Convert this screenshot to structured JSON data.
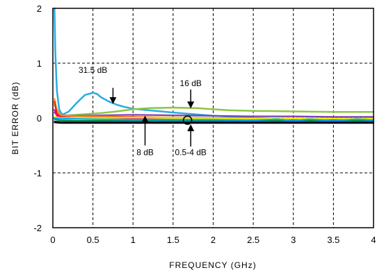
{
  "chart_data": {
    "type": "line",
    "title": "",
    "xlabel": "FREQUENCY (GHz)",
    "ylabel": "BIT ERROR (dB)",
    "xlim": [
      0,
      4
    ],
    "ylim": [
      -2,
      2
    ],
    "xticks": [
      0,
      0.5,
      1,
      1.5,
      2,
      2.5,
      3,
      3.5,
      4
    ],
    "xtick_labels": [
      "0",
      "0.5",
      "1",
      "1.5",
      "2",
      "2.5",
      "3",
      "3.5",
      "4"
    ],
    "yticks": [
      -2,
      -1,
      0,
      1,
      2
    ],
    "ytick_labels": [
      "-2",
      "-1",
      "0",
      "1",
      "2"
    ],
    "grid": "dashed",
    "legend": "none",
    "series": [
      {
        "color": "#29ABE2",
        "x": [
          0.02,
          0.03,
          0.05,
          0.08,
          0.12,
          0.2,
          0.3,
          0.4,
          0.5,
          0.55,
          0.6,
          0.7,
          0.8,
          0.9,
          1.0,
          1.2,
          1.5,
          2.0,
          2.5,
          3.0,
          3.5,
          4.0
        ],
        "y": [
          2.0,
          1.2,
          0.5,
          0.15,
          0.06,
          0.12,
          0.28,
          0.42,
          0.46,
          0.44,
          0.38,
          0.3,
          0.24,
          0.2,
          0.17,
          0.14,
          0.1,
          0.04,
          0.0,
          -0.02,
          -0.03,
          -0.02
        ]
      },
      {
        "color": "#8DC63F",
        "x": [
          0.02,
          0.05,
          0.1,
          0.2,
          0.4,
          0.6,
          0.8,
          1.0,
          1.2,
          1.5,
          1.8,
          2.0,
          2.2,
          2.5,
          3.0,
          3.5,
          4.0
        ],
        "y": [
          0.25,
          0.12,
          0.04,
          0.05,
          0.07,
          0.09,
          0.12,
          0.16,
          0.18,
          0.19,
          0.18,
          0.16,
          0.14,
          0.13,
          0.12,
          0.11,
          0.11
        ]
      },
      {
        "color": "#7B3FB0",
        "x": [
          0.02,
          0.05,
          0.1,
          0.3,
          0.6,
          1.0,
          1.5,
          2.0,
          2.5,
          3.0,
          3.5,
          4.0
        ],
        "y": [
          0.1,
          0.06,
          0.05,
          0.04,
          0.05,
          0.06,
          0.05,
          0.04,
          0.03,
          0.03,
          0.02,
          0.02
        ]
      },
      {
        "color": "#F7941D",
        "x": [
          0.02,
          0.05,
          0.1,
          0.3,
          0.6,
          1.0,
          1.5,
          2.0,
          2.5,
          3.0,
          3.5,
          4.0
        ],
        "y": [
          0.35,
          0.15,
          0.05,
          0.03,
          0.03,
          0.02,
          0.01,
          0.0,
          -0.01,
          -0.01,
          -0.01,
          -0.01
        ]
      },
      {
        "color": "#ED1C24",
        "x": [
          0.02,
          0.05,
          0.1,
          0.3,
          0.6,
          1.0,
          1.5,
          2.0,
          2.5,
          3.0,
          3.5,
          4.0
        ],
        "y": [
          0.3,
          0.08,
          0.02,
          0.0,
          0.01,
          0.02,
          0.0,
          -0.01,
          -0.02,
          -0.01,
          -0.02,
          -0.02
        ]
      },
      {
        "color": "#EC008C",
        "x": [
          0.02,
          0.05,
          0.1,
          0.3,
          0.6,
          1.0,
          1.5,
          2.0,
          2.5,
          3.0,
          3.5,
          4.0
        ],
        "y": [
          0.15,
          0.04,
          0.0,
          -0.01,
          0.0,
          -0.01,
          -0.02,
          -0.02,
          -0.03,
          -0.02,
          -0.03,
          -0.03
        ]
      },
      {
        "color": "#009444",
        "x": [
          0.02,
          0.05,
          0.1,
          0.3,
          0.6,
          1.0,
          1.5,
          2.0,
          2.5,
          3.0,
          3.5,
          4.0
        ],
        "y": [
          -0.02,
          -0.03,
          -0.04,
          -0.05,
          -0.05,
          -0.05,
          -0.05,
          -0.05,
          -0.05,
          -0.05,
          -0.05,
          -0.05
        ]
      },
      {
        "color": "#FFF200",
        "x": [
          0.02,
          0.1,
          0.5,
          1.0,
          1.5,
          2.0,
          2.5,
          3.0,
          3.5,
          4.0
        ],
        "y": [
          0.02,
          0.0,
          0.0,
          0.01,
          0.0,
          -0.01,
          -0.01,
          -0.01,
          -0.01,
          -0.01
        ]
      },
      {
        "color": "#00AEEF",
        "x": [
          0.02,
          0.1,
          0.5,
          1.0,
          1.5,
          2.0,
          2.5,
          2.8,
          3.0,
          3.2,
          3.5,
          3.8,
          4.0
        ],
        "y": [
          0.0,
          -0.01,
          -0.02,
          -0.03,
          -0.03,
          -0.03,
          -0.04,
          -0.02,
          -0.05,
          -0.02,
          -0.05,
          -0.02,
          -0.04
        ]
      },
      {
        "color": "#2E3192",
        "x": [
          0.02,
          0.1,
          0.5,
          1.0,
          1.5,
          2.0,
          2.5,
          3.0,
          3.5,
          4.0
        ],
        "y": [
          -0.06,
          -0.07,
          -0.07,
          -0.07,
          -0.07,
          -0.07,
          -0.07,
          -0.07,
          -0.07,
          -0.07
        ]
      },
      {
        "color": "#000000",
        "x": [
          0.02,
          0.1,
          0.5,
          1.0,
          1.5,
          2.0,
          2.5,
          3.0,
          3.5,
          4.0
        ],
        "y": [
          -0.08,
          -0.09,
          -0.09,
          -0.09,
          -0.09,
          -0.09,
          -0.09,
          -0.09,
          -0.09,
          -0.09
        ]
      }
    ],
    "annotations": [
      {
        "label": "31.5 dB",
        "text_at": [
          0.5,
          0.82
        ],
        "arrow_from": [
          0.75,
          0.55
        ],
        "arrow_to": [
          0.75,
          0.28
        ]
      },
      {
        "label": "16 dB",
        "text_at": [
          1.72,
          0.58
        ],
        "arrow_from": [
          1.72,
          0.52
        ],
        "arrow_to": [
          1.72,
          0.2
        ]
      },
      {
        "label": "8 dB",
        "text_at": [
          1.15,
          -0.68
        ],
        "arrow_from": [
          1.15,
          -0.5
        ],
        "arrow_to": [
          1.15,
          0.02
        ]
      },
      {
        "label": "0.5-4 dB",
        "text_at": [
          1.72,
          -0.68
        ],
        "arrow_from": [
          1.72,
          -0.52
        ],
        "arrow_to": [
          1.72,
          -0.14
        ]
      }
    ],
    "markers": [
      {
        "shape": "circle",
        "at": [
          1.68,
          -0.04
        ]
      }
    ]
  }
}
